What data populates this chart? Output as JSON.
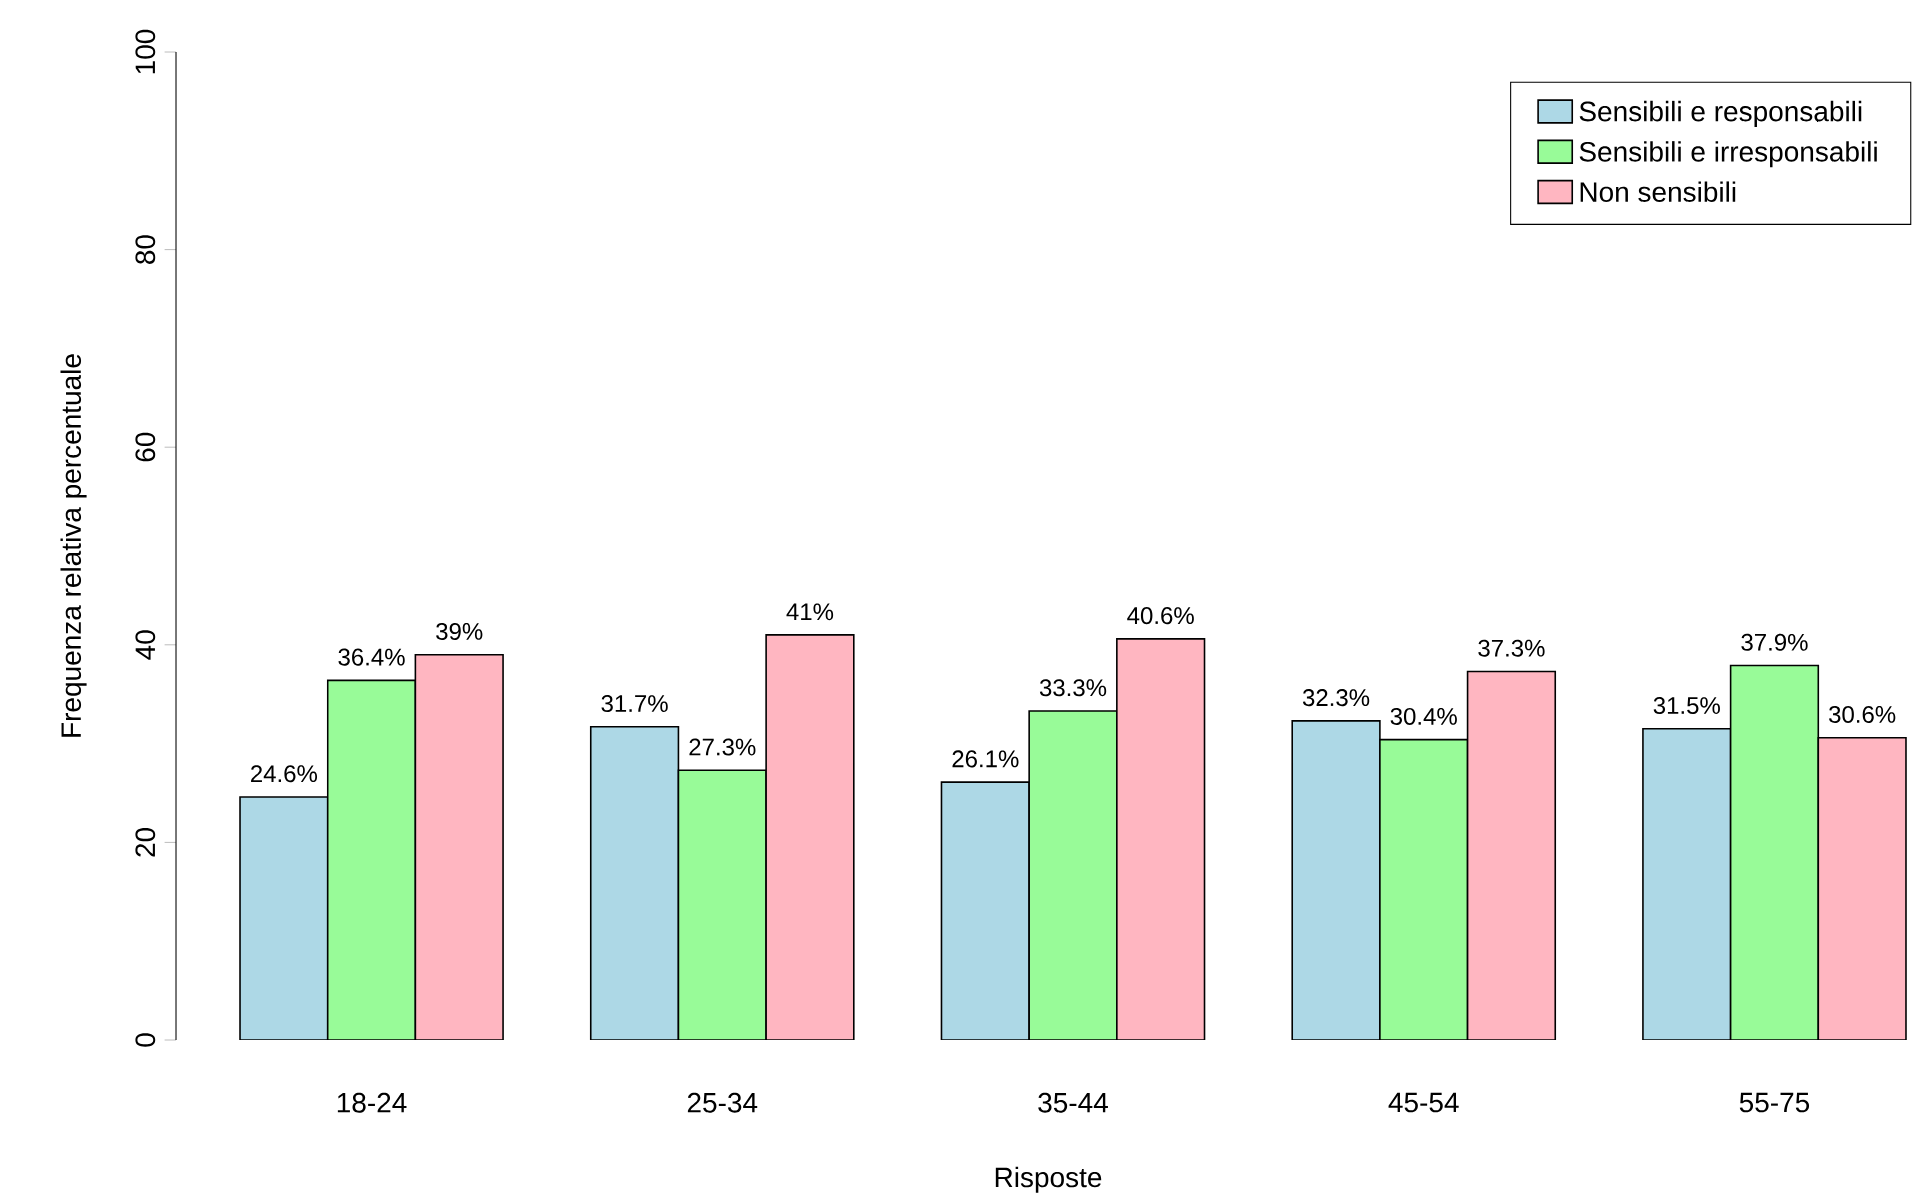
{
  "chart_data": {
    "type": "bar",
    "xlabel": "Risposte",
    "ylabel": "Frequenza relativa percentuale",
    "categories": [
      "18-24",
      "25-34",
      "35-44",
      "45-54",
      "55-75"
    ],
    "series": [
      {
        "name": "Sensibili e responsabili",
        "color": "#add8e6",
        "values": [
          24.6,
          31.7,
          26.1,
          32.3,
          31.5
        ],
        "value_labels": [
          "24.6%",
          "31.7%",
          "26.1%",
          "32.3%",
          "31.5%"
        ]
      },
      {
        "name": "Sensibili e irresponsabili",
        "color": "#98fb98",
        "values": [
          36.4,
          27.3,
          33.3,
          30.4,
          37.9
        ],
        "value_labels": [
          "36.4%",
          "27.3%",
          "33.3%",
          "30.4%",
          "37.9%"
        ]
      },
      {
        "name": "Non sensibili",
        "color": "#ffb6c1",
        "values": [
          39,
          41,
          40.6,
          37.3,
          30.6
        ],
        "value_labels": [
          "39%",
          "41%",
          "40.6%",
          "37.3%",
          "30.6%"
        ]
      }
    ],
    "ylim": [
      0,
      100
    ],
    "yticks": [
      0,
      20,
      40,
      60,
      80,
      100
    ],
    "legend": "top right"
  }
}
